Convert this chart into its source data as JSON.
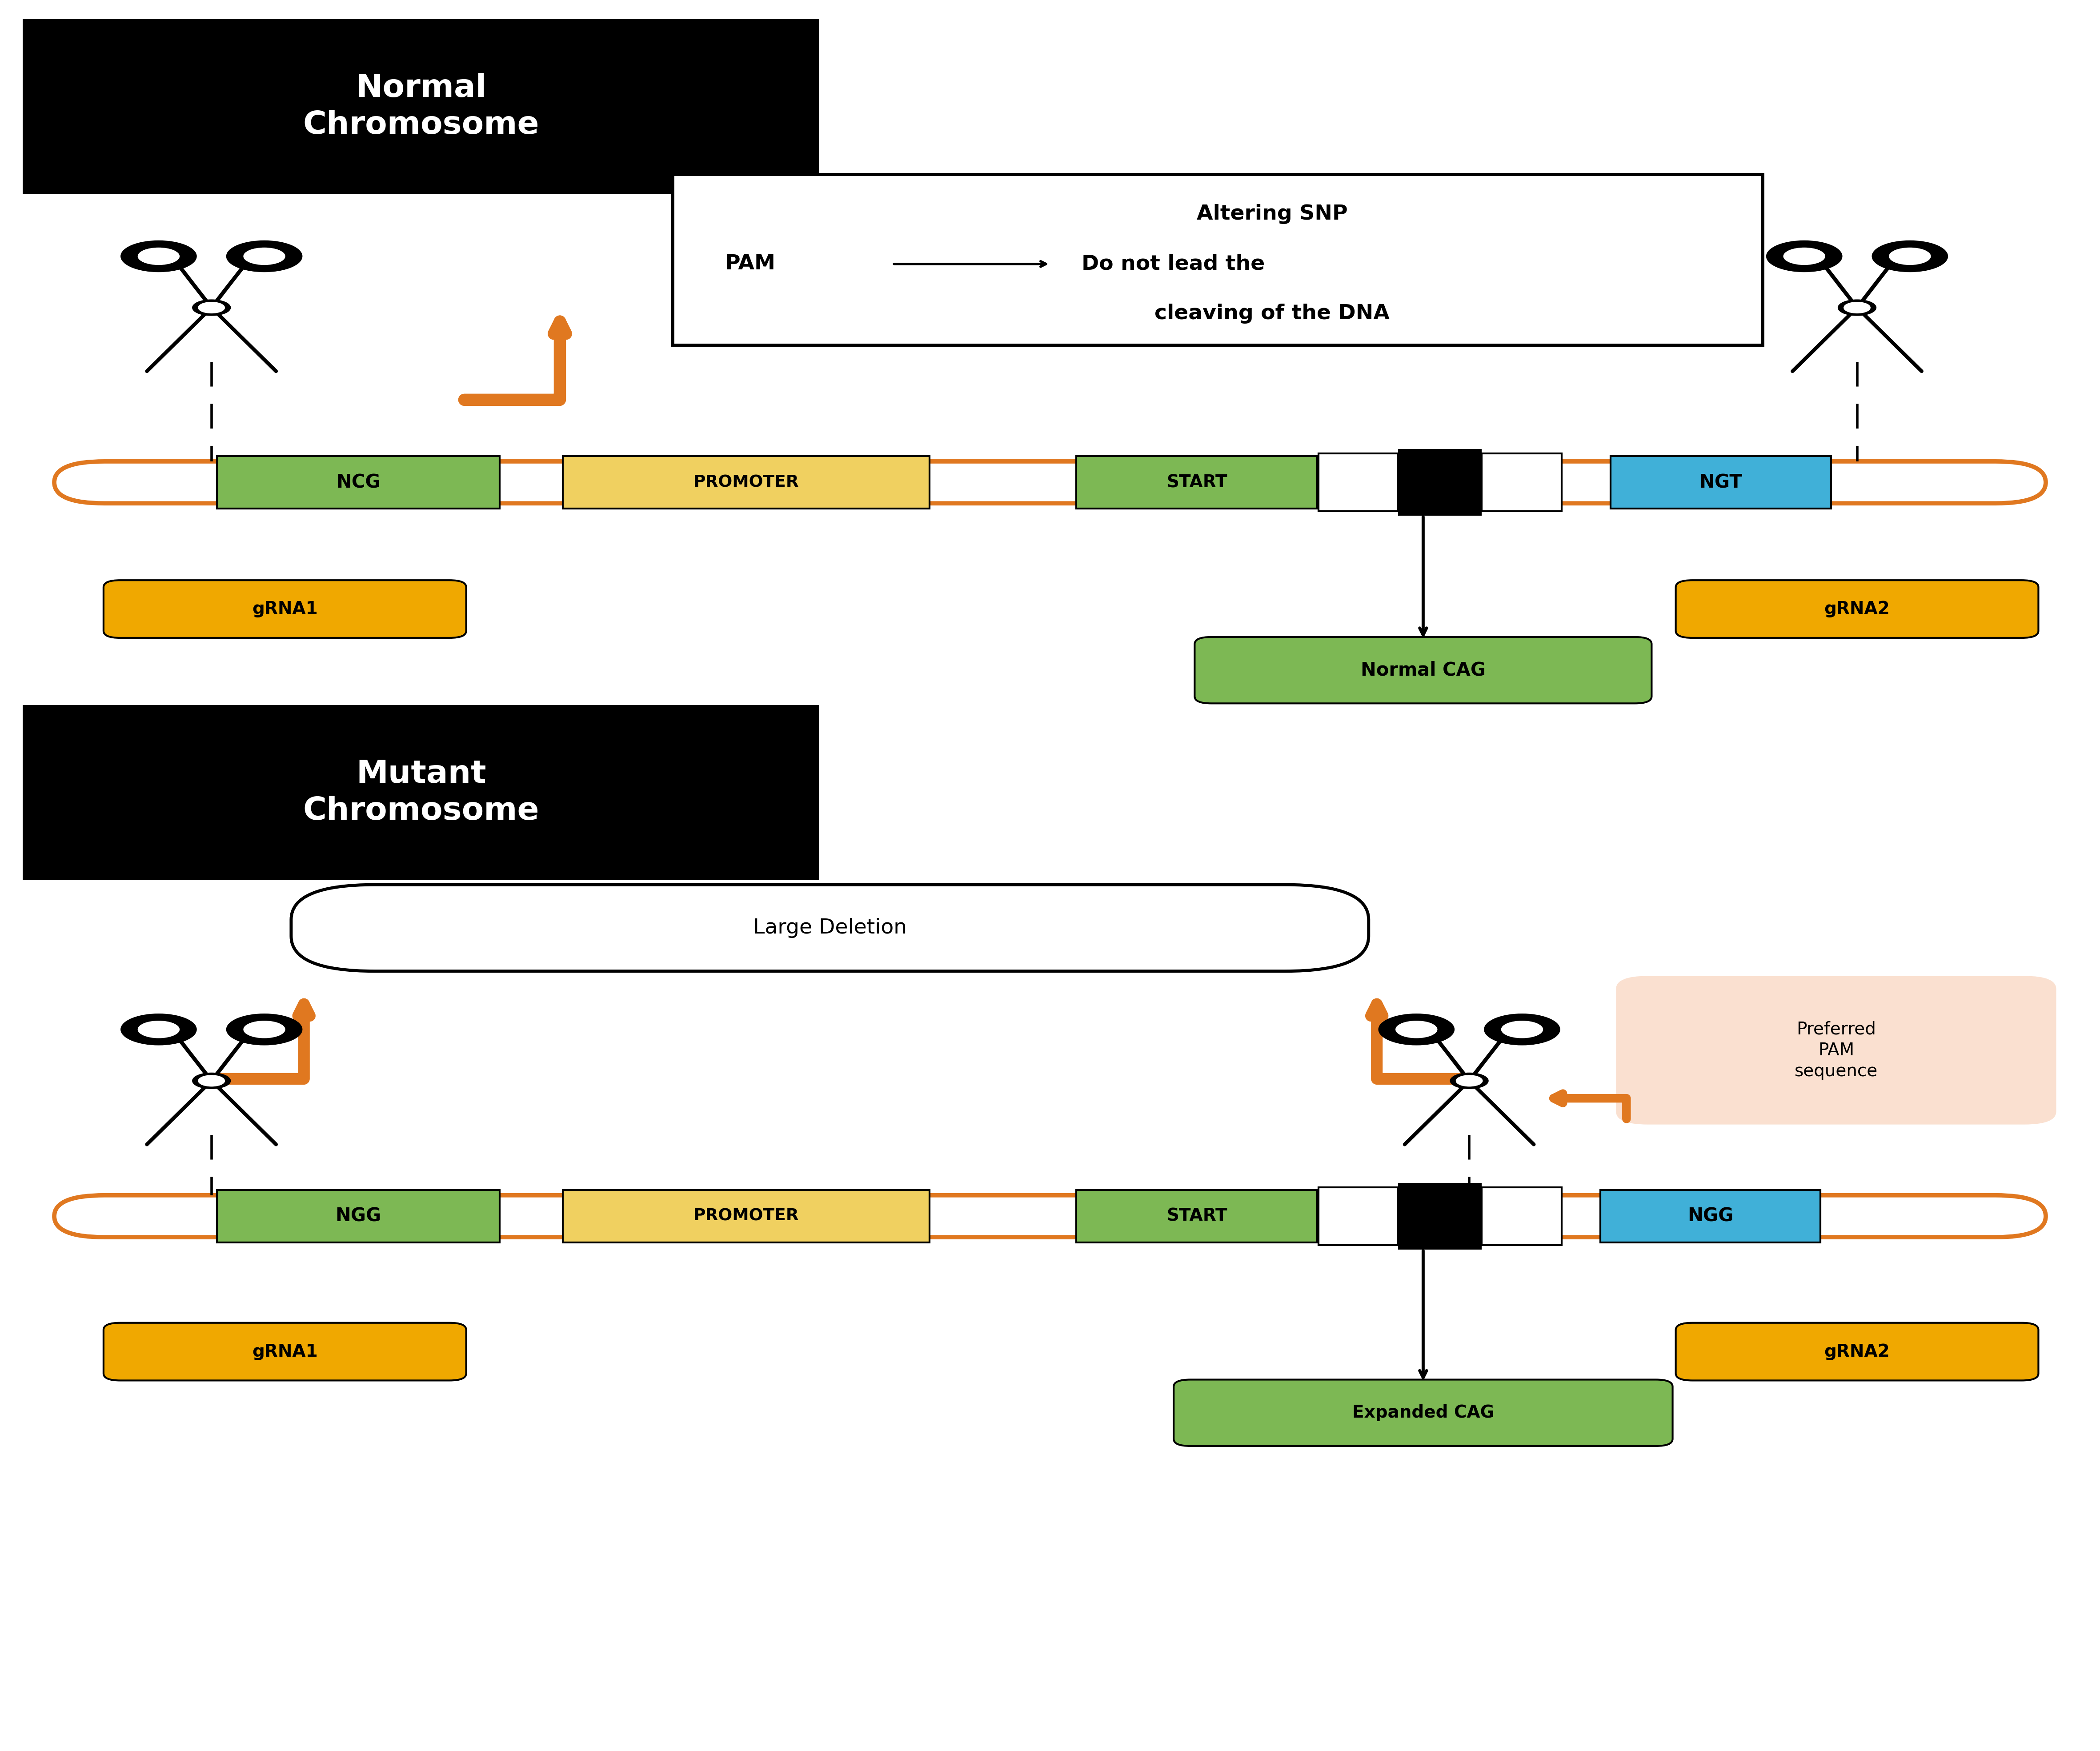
{
  "bg_color": "#ffffff",
  "fig_width": 47.24,
  "fig_height": 39.39,
  "top_label": "Normal\nChromosome",
  "bottom_label": "Mutant\nChromosome",
  "orange_color": "#E07820",
  "green_color": "#7DB854",
  "yellow_color": "#F0D060",
  "blue_color": "#40B0D8",
  "black_color": "#000000",
  "white_color": "#ffffff",
  "preferred_pam_bg": "#FAE0D0",
  "ncg_label": "NCG",
  "promoter_label": "PROMOTER",
  "start_label": "START",
  "ngt_label": "NGT",
  "ngg_label": "NGG",
  "grna1_label": "gRNA1",
  "grna2_label": "gRNA2",
  "normal_cag_label": "Normal CAG",
  "expanded_cag_label": "Expanded CAG",
  "large_deletion_label": "Large Deletion",
  "preferred_pam_label": "Preferred\nPAM\nsequence"
}
